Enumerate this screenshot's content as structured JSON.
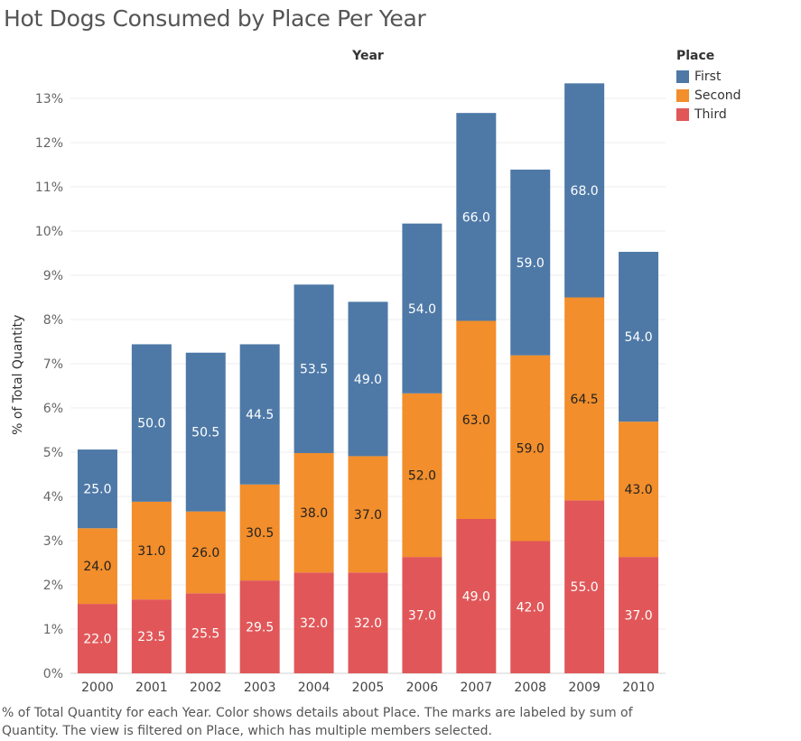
{
  "page": {
    "title": "Hot Dogs Consumed by Place Per Year",
    "caption": "% of Total Quantity for each Year.  Color shows details about Place.  The marks are labeled by sum of Quantity. The view is filtered on Place, which has multiple members selected."
  },
  "legend": {
    "title": "Place",
    "items": [
      {
        "label": "First",
        "color": "#4e79a7"
      },
      {
        "label": "Second",
        "color": "#f28e2b"
      },
      {
        "label": "Third",
        "color": "#e15759"
      }
    ]
  },
  "chart_data": {
    "type": "bar",
    "stacked": true,
    "title": "Hot Dogs Consumed by Place Per Year",
    "column_header": "Year",
    "ylabel": "% of Total Quantity",
    "ylim": [
      0,
      13.5
    ],
    "yticks": [
      "0%",
      "1%",
      "2%",
      "3%",
      "4%",
      "5%",
      "6%",
      "7%",
      "8%",
      "9%",
      "10%",
      "11%",
      "12%",
      "13%"
    ],
    "categories": [
      "2000",
      "2001",
      "2002",
      "2003",
      "2004",
      "2005",
      "2006",
      "2007",
      "2008",
      "2009",
      "2010"
    ],
    "legend_position": "top-right",
    "series": [
      {
        "name": "Third",
        "color": "#e15759",
        "percent": [
          1.57,
          1.67,
          1.81,
          2.1,
          2.28,
          2.28,
          2.63,
          3.49,
          2.99,
          3.91,
          2.63
        ],
        "labels": [
          "22.0",
          "23.5",
          "25.5",
          "29.5",
          "32.0",
          "32.0",
          "37.0",
          "49.0",
          "42.0",
          "55.0",
          "37.0"
        ]
      },
      {
        "name": "Second",
        "color": "#f28e2b",
        "percent": [
          1.71,
          2.21,
          1.85,
          2.17,
          2.7,
          2.63,
          3.7,
          4.48,
          4.2,
          4.59,
          3.06
        ],
        "labels": [
          "24.0",
          "31.0",
          "26.0",
          "30.5",
          "38.0",
          "37.0",
          "52.0",
          "63.0",
          "59.0",
          "64.5",
          "43.0"
        ]
      },
      {
        "name": "First",
        "color": "#4e79a7",
        "percent": [
          1.78,
          3.56,
          3.59,
          3.17,
          3.81,
          3.49,
          3.84,
          4.7,
          4.2,
          4.84,
          3.84
        ],
        "labels": [
          "25.0",
          "50.0",
          "50.5",
          "44.5",
          "53.5",
          "49.0",
          "54.0",
          "66.0",
          "59.0",
          "68.0",
          "54.0"
        ]
      }
    ]
  }
}
